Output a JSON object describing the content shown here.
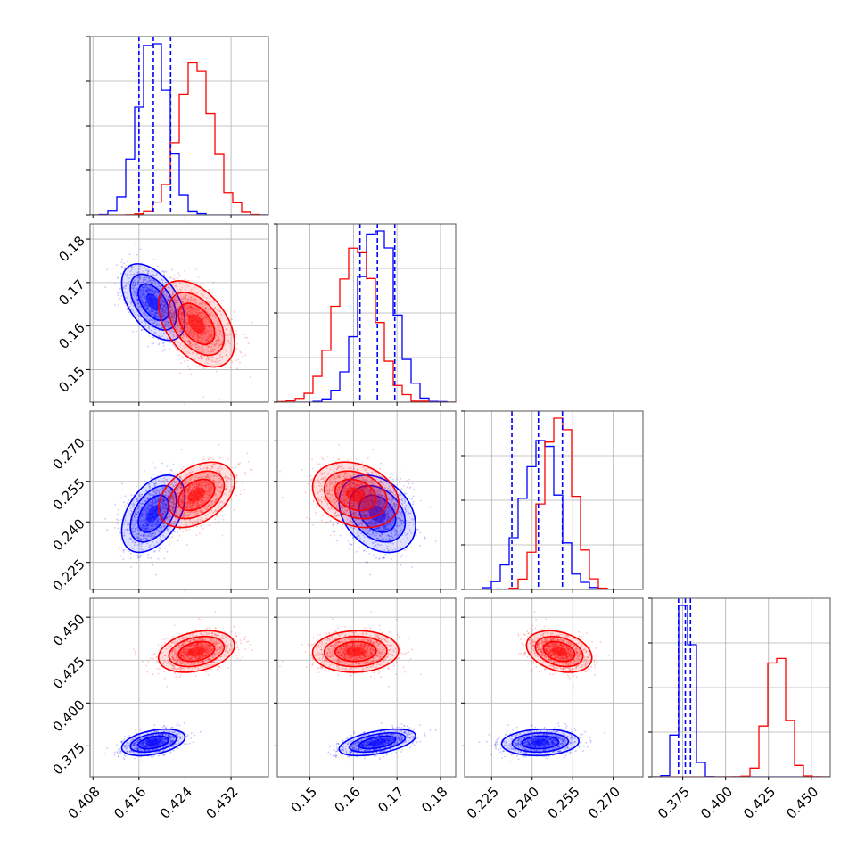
{
  "chart_data": {
    "type": "corner",
    "grid": true,
    "params": [
      {
        "index": 0,
        "ticks": [
          0.408,
          0.416,
          0.424,
          0.432
        ],
        "tick_labels": [
          "0.408",
          "0.416",
          "0.424",
          "0.432"
        ],
        "range": [
          0.4075,
          0.4385
        ]
      },
      {
        "index": 1,
        "ticks": [
          0.15,
          0.16,
          0.17,
          0.18
        ],
        "tick_labels": [
          "0.15",
          "0.16",
          "0.17",
          "0.18"
        ],
        "range": [
          0.1425,
          0.1835
        ]
      },
      {
        "index": 2,
        "ticks": [
          0.225,
          0.24,
          0.255,
          0.27
        ],
        "tick_labels": [
          "0.225",
          "0.240",
          "0.255",
          "0.270"
        ],
        "range": [
          0.215,
          0.281
        ]
      },
      {
        "index": 3,
        "ticks": [
          0.375,
          0.4,
          0.425,
          0.45
        ],
        "tick_labels": [
          "0.375",
          "0.400",
          "0.425",
          "0.450"
        ],
        "range": [
          0.357,
          0.461
        ]
      }
    ],
    "series": [
      {
        "color": "#0000ff",
        "mean": [
          0.4185,
          0.1655,
          0.243,
          0.377
        ],
        "std": [
          0.0025,
          0.004,
          0.0065,
          0.0035
        ],
        "corr": [
          [
            1,
            -0.5,
            0.45,
            0.4
          ],
          [
            -0.5,
            1,
            -0.3,
            0.5
          ],
          [
            0.45,
            -0.3,
            1,
            0.1
          ],
          [
            0.4,
            0.5,
            0.1,
            1
          ]
        ],
        "quantiles": [
          [
            0.416,
            0.4185,
            0.4215
          ],
          [
            0.1615,
            0.1655,
            0.1695
          ],
          [
            0.2325,
            0.2423,
            0.2512
          ],
          [
            0.3725,
            0.3765,
            0.3795
          ]
        ]
      },
      {
        "color": "#ff0000",
        "mean": [
          0.426,
          0.1605,
          0.25,
          0.43
        ],
        "std": [
          0.003,
          0.0045,
          0.0055,
          0.0055
        ],
        "corr": [
          [
            1,
            -0.45,
            0.4,
            0.3
          ],
          [
            -0.45,
            1,
            -0.25,
            0.05
          ],
          [
            0.4,
            -0.25,
            1,
            -0.3
          ],
          [
            0.3,
            0.05,
            -0.3,
            1
          ]
        ],
        "quantiles": []
      }
    ]
  }
}
